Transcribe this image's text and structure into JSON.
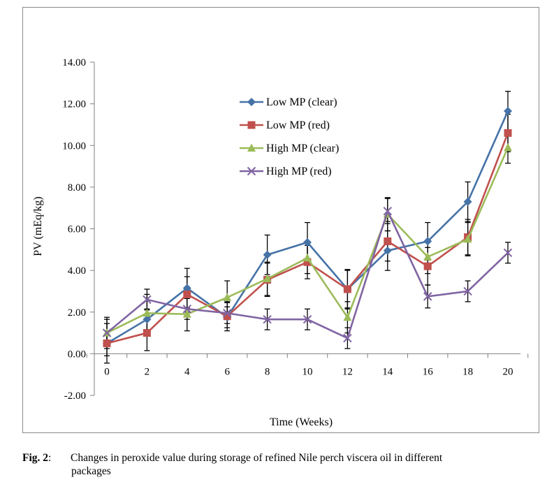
{
  "chart_data": {
    "type": "line",
    "xlabel": "Time (Weeks)",
    "ylabel": "PV (mEq/kg)",
    "x": [
      0,
      2,
      4,
      6,
      8,
      10,
      12,
      14,
      16,
      18,
      20
    ],
    "x_ticks": [
      "0",
      "2",
      "4",
      "6",
      "8",
      "10",
      "12",
      "14",
      "16",
      "18",
      "20"
    ],
    "y_ticks": [
      "-2.00",
      "0.00",
      "2.00",
      "4.00",
      "6.00",
      "8.00",
      "10.00",
      "12.00",
      "14.00"
    ],
    "ylim": [
      -2,
      14
    ],
    "grid": false,
    "legend_position": "top-center",
    "series": [
      {
        "name": "Low MP (clear)",
        "color": "#4572A7",
        "marker": "diamond",
        "values": [
          0.5,
          1.65,
          3.15,
          1.75,
          4.75,
          5.35,
          3.1,
          4.95,
          5.4,
          7.3,
          11.65
        ],
        "errors": [
          0.6,
          0.5,
          0.95,
          0.5,
          0.95,
          0.95,
          0.95,
          0.95,
          0.9,
          0.95,
          0.95
        ]
      },
      {
        "name": "Low MP (red)",
        "color": "#C0504D",
        "marker": "square",
        "values": [
          0.5,
          1.0,
          2.85,
          1.8,
          3.55,
          4.4,
          3.1,
          5.4,
          4.2,
          5.6,
          10.6
        ],
        "errors": [
          0.95,
          0.85,
          0.85,
          0.7,
          0.8,
          0.8,
          0.9,
          0.95,
          0.9,
          0.85,
          0.9
        ]
      },
      {
        "name": "High MP (clear)",
        "color": "#9BBB59",
        "marker": "triangle",
        "values": [
          1.0,
          1.95,
          1.9,
          2.7,
          3.6,
          4.6,
          1.75,
          6.7,
          4.65,
          5.5,
          9.9
        ],
        "errors": [
          0.75,
          0.9,
          0.8,
          0.8,
          0.8,
          0.75,
          0.75,
          0.8,
          0.8,
          0.8,
          0.75
        ]
      },
      {
        "name": "High MP (red)",
        "color": "#8064A2",
        "marker": "x",
        "values": [
          1.0,
          2.6,
          2.15,
          1.95,
          1.65,
          1.65,
          0.75,
          6.85,
          2.75,
          3.0,
          4.85
        ],
        "errors": [
          0.65,
          0.5,
          0.5,
          0.5,
          0.5,
          0.5,
          0.5,
          0.6,
          0.55,
          0.5,
          0.5
        ]
      }
    ]
  },
  "caption": {
    "label": "Fig. 2",
    "colon": ":",
    "text_line1": "Changes in peroxide value during storage of refined Nile perch viscera oil in different",
    "text_line2": "packages"
  }
}
